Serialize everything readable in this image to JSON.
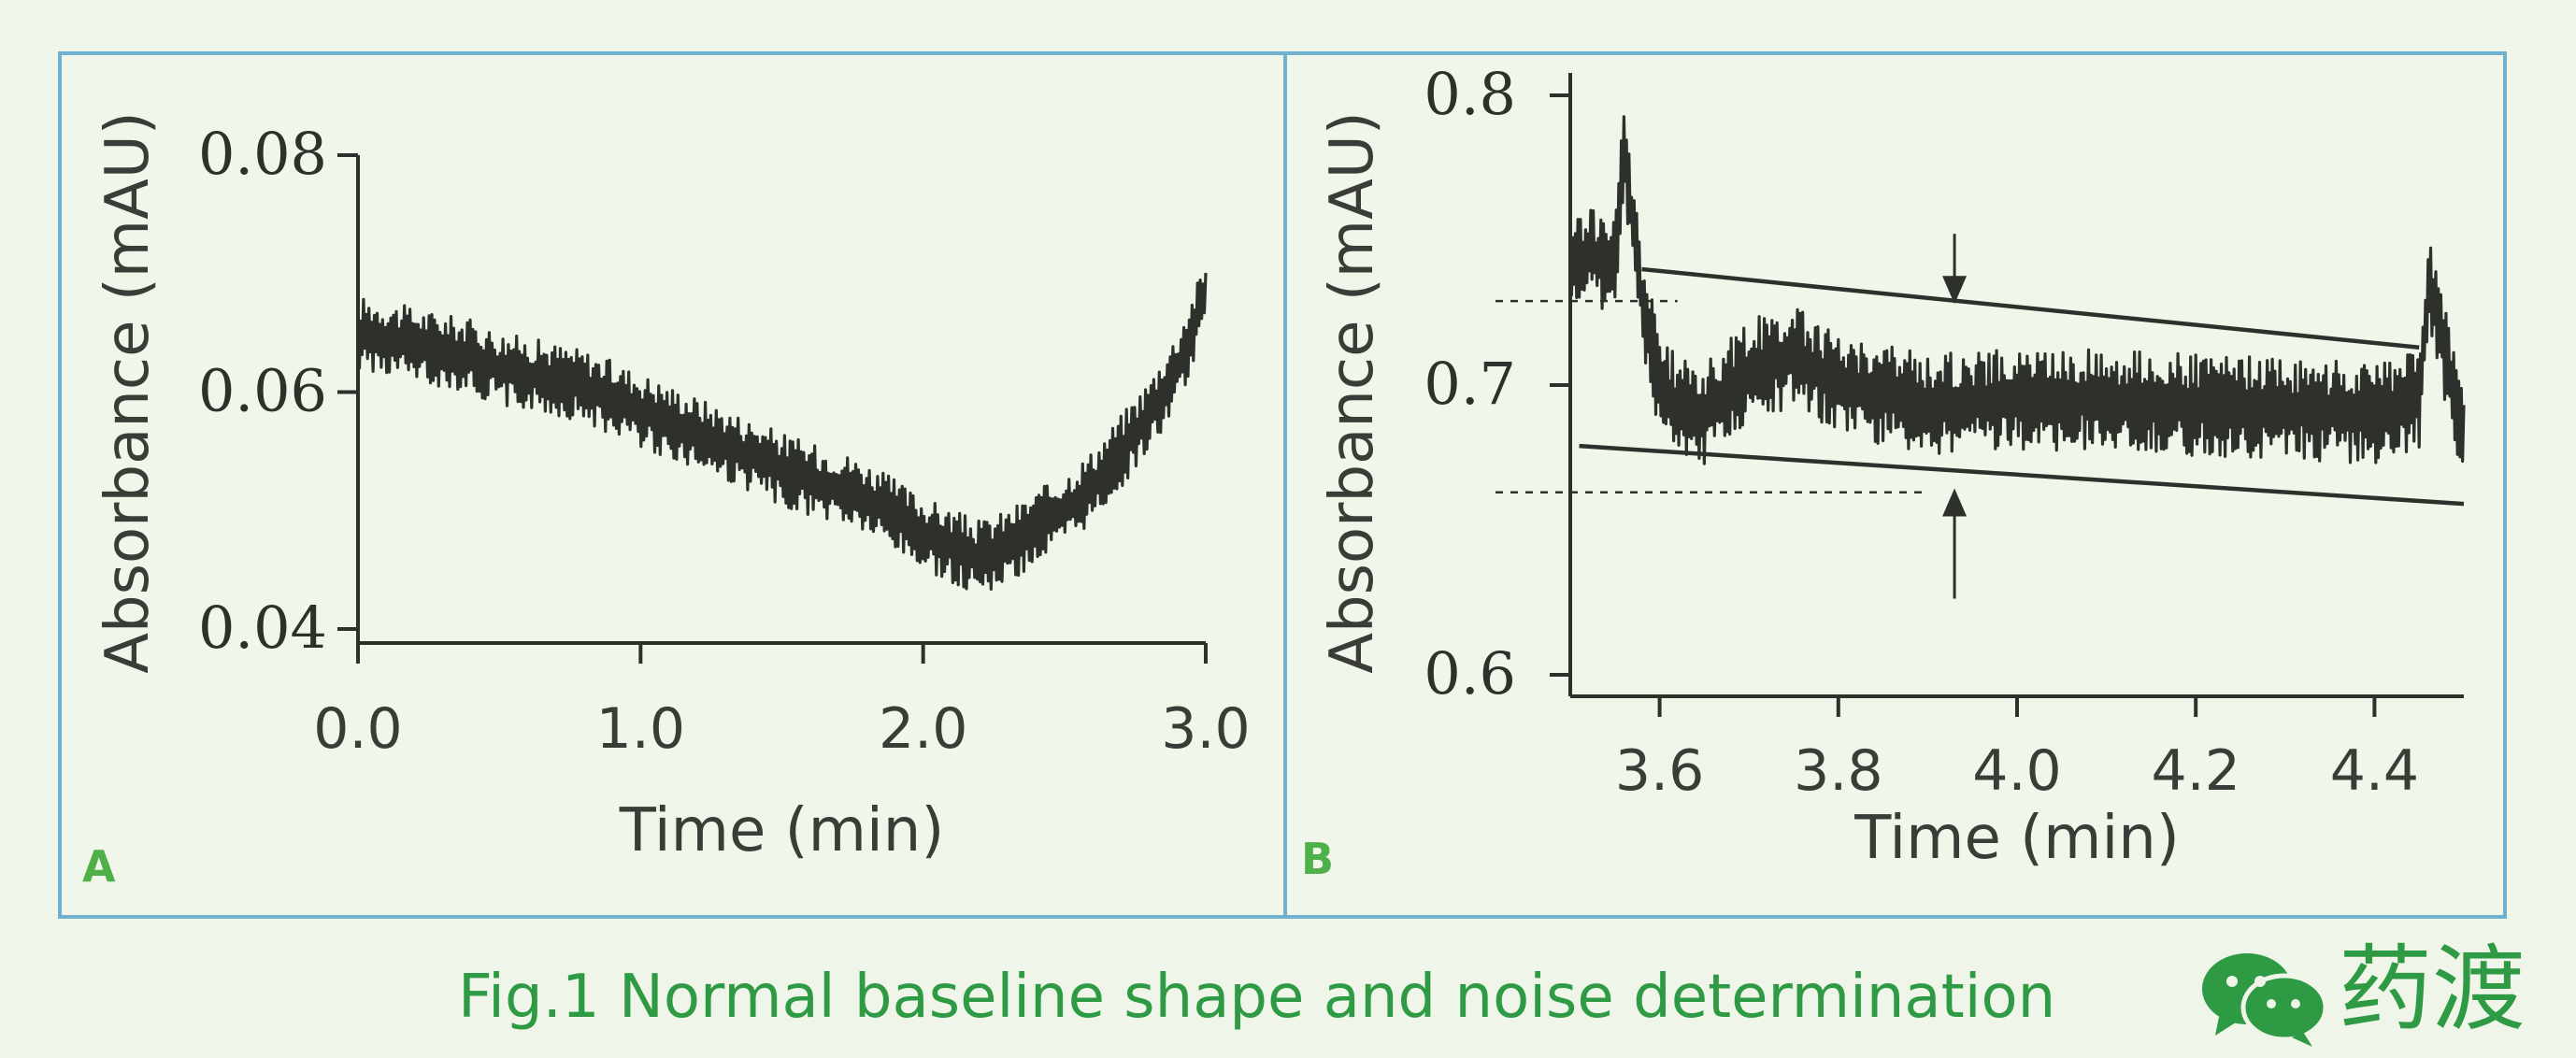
{
  "figure": {
    "caption": "Fig.1 Normal baseline shape and noise determination",
    "logo_text": "药渡",
    "caption_color": "#2f9a44",
    "frame_color": "#6fb1cf",
    "line_color": "#2e312b"
  },
  "chart_data": [
    {
      "panel_label": "A",
      "type": "line",
      "title": "",
      "xlabel": "Time (min)",
      "ylabel": "Absorbance (mAU)",
      "xlim": [
        0,
        3
      ],
      "ylim": [
        0.04,
        0.08
      ],
      "x_ticks": [
        "0.0",
        "1.0",
        "2.0",
        "3.0"
      ],
      "x_tick_values": [
        0,
        1,
        2,
        3
      ],
      "y_ticks": [
        "0.08",
        "0.06",
        "0.04"
      ],
      "y_tick_values": [
        0.08,
        0.06,
        0.04
      ],
      "series": [
        {
          "name": "baseline trace (noisy)",
          "x": [
            0,
            0.1,
            0.2,
            0.3,
            0.4,
            0.5,
            0.6,
            0.7,
            0.8,
            0.9,
            1.0,
            1.1,
            1.2,
            1.3,
            1.4,
            1.5,
            1.6,
            1.7,
            1.8,
            1.9,
            2.0,
            2.1,
            2.2,
            2.3,
            2.4,
            2.5,
            2.6,
            2.7,
            2.8,
            2.9,
            2.95,
            3.0
          ],
          "y": [
            0.065,
            0.0645,
            0.064,
            0.0635,
            0.063,
            0.062,
            0.0615,
            0.061,
            0.0605,
            0.0595,
            0.0585,
            0.0575,
            0.0565,
            0.0555,
            0.0545,
            0.0535,
            0.0525,
            0.052,
            0.051,
            0.0495,
            0.048,
            0.047,
            0.046,
            0.047,
            0.0485,
            0.05,
            0.052,
            0.055,
            0.058,
            0.062,
            0.065,
            0.068
          ],
          "noise_amplitude": 0.0025
        }
      ]
    },
    {
      "panel_label": "B",
      "type": "line",
      "title": "",
      "xlabel": "Time (min)",
      "ylabel": "Absorbance (mAU)",
      "xlim": [
        3.5,
        4.5
      ],
      "ylim": [
        0.6,
        0.8
      ],
      "x_ticks": [
        "3.6",
        "3.8",
        "4.0",
        "4.2",
        "4.4"
      ],
      "x_tick_values": [
        3.6,
        3.8,
        4.0,
        4.2,
        4.4
      ],
      "y_ticks": [
        "0.8",
        "0.7",
        "0.6"
      ],
      "y_tick_values": [
        0.8,
        0.7,
        0.6
      ],
      "series": [
        {
          "name": "baseline trace (noisy)",
          "x": [
            3.5,
            3.52,
            3.55,
            3.56,
            3.58,
            3.6,
            3.62,
            3.65,
            3.7,
            3.75,
            3.8,
            3.85,
            3.9,
            4.0,
            4.1,
            4.2,
            4.3,
            4.4,
            4.45,
            4.46,
            4.48,
            4.5
          ],
          "y": [
            0.74,
            0.745,
            0.74,
            0.78,
            0.73,
            0.7,
            0.692,
            0.69,
            0.705,
            0.71,
            0.7,
            0.697,
            0.693,
            0.695,
            0.695,
            0.693,
            0.692,
            0.69,
            0.695,
            0.735,
            0.71,
            0.68
          ],
          "noise_amplitude": 0.014
        }
      ],
      "envelope_lines": [
        {
          "name": "upper envelope",
          "x": [
            3.58,
            4.45
          ],
          "y": [
            0.74,
            0.713
          ]
        },
        {
          "name": "lower envelope",
          "x": [
            3.51,
            4.5
          ],
          "y": [
            0.679,
            0.659
          ]
        }
      ],
      "reference_levels": [
        {
          "name": "upper dashed level",
          "y": 0.729,
          "x_end": 3.62
        },
        {
          "name": "lower dashed level",
          "y": 0.663,
          "x_end": 3.9
        }
      ],
      "noise_arrows": {
        "x": 3.93,
        "top": 0.728,
        "bottom": 0.665
      }
    }
  ]
}
